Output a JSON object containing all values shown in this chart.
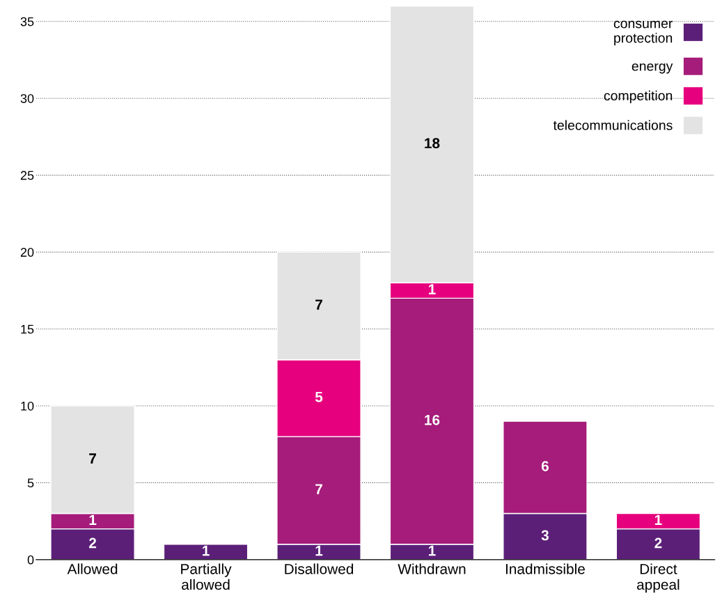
{
  "chart_data": {
    "type": "bar",
    "stacked": true,
    "categories": [
      "Allowed",
      "Partially allowed",
      "Disallowed",
      "Withdrawn",
      "Inadmissible",
      "Direct appeal"
    ],
    "series": [
      {
        "name": "consumer protection",
        "color": "#5c1f78",
        "values": [
          2,
          1,
          1,
          1,
          3,
          2
        ]
      },
      {
        "name": "energy",
        "color": "#a51c7a",
        "values": [
          1,
          null,
          7,
          16,
          6,
          null
        ]
      },
      {
        "name": "competition",
        "color": "#e6007e",
        "values": [
          null,
          null,
          5,
          1,
          null,
          1
        ]
      },
      {
        "name": "telecommunications",
        "color": "#e3e3e3",
        "values": [
          7,
          null,
          7,
          18,
          null,
          null
        ]
      }
    ],
    "ylim": [
      0,
      36
    ],
    "yticks": [
      0,
      5,
      10,
      15,
      20,
      25,
      30,
      35
    ],
    "grid": "y",
    "legend": "top right",
    "data_labels": true
  }
}
